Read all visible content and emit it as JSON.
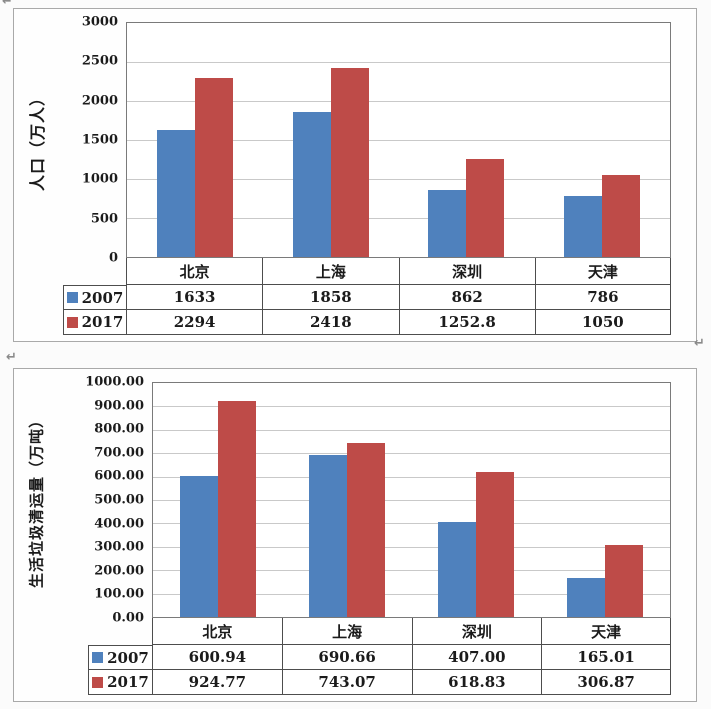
{
  "page": {
    "paragraph_mark": "↵"
  },
  "colors": {
    "series_2007": "#4F81BD",
    "series_2017": "#BE4B48",
    "gridline": "#C9C9C9",
    "plot_border": "#7A7A7A",
    "table_border": "#4D4D4D",
    "chart_border": "#A9A9A9"
  },
  "chart_data": [
    {
      "type": "bar",
      "title": "",
      "ylabel": "人口（万人）",
      "categories": [
        "北京",
        "上海",
        "深圳",
        "天津"
      ],
      "series": [
        {
          "name": "2007",
          "color": "#4F81BD",
          "values": [
            1633,
            1858,
            862,
            786
          ],
          "labels": [
            "1633",
            "1858",
            "862",
            "786"
          ]
        },
        {
          "name": "2017",
          "color": "#BE4B48",
          "values": [
            2294,
            2418,
            1252.8,
            1050
          ],
          "labels": [
            "2294",
            "2418",
            "1252.8",
            "1050"
          ]
        }
      ],
      "ylim": [
        0,
        3000
      ],
      "yticks": [
        "3000",
        "2500",
        "2000",
        "1500",
        "1000",
        "500",
        "0"
      ],
      "grid": true,
      "legend_position": "table-left"
    },
    {
      "type": "bar",
      "title": "",
      "ylabel": "生活垃圾清运量（万吨）",
      "categories": [
        "北京",
        "上海",
        "深圳",
        "天津"
      ],
      "series": [
        {
          "name": "2007",
          "color": "#4F81BD",
          "values": [
            600.94,
            690.66,
            407.0,
            165.01
          ],
          "labels": [
            "600.94",
            "690.66",
            "407.00",
            "165.01"
          ]
        },
        {
          "name": "2017",
          "color": "#BE4B48",
          "values": [
            924.77,
            743.07,
            618.83,
            306.87
          ],
          "labels": [
            "924.77",
            "743.07",
            "618.83",
            "306.87"
          ]
        }
      ],
      "ylim": [
        0,
        1000
      ],
      "yticks": [
        "1000.00",
        "900.00",
        "800.00",
        "700.00",
        "600.00",
        "500.00",
        "400.00",
        "300.00",
        "200.00",
        "100.00",
        "0.00"
      ],
      "grid": true,
      "legend_position": "table-left"
    }
  ]
}
